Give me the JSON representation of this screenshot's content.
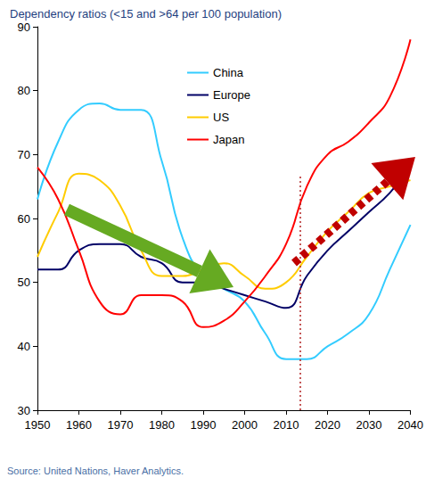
{
  "chart_data": {
    "type": "line",
    "title": "Dependency ratios (<15 and >64 per 100 population)",
    "source": "Source: United Nations, Haver Analytics.",
    "x": [
      1950,
      1955,
      1960,
      1965,
      1970,
      1975,
      1980,
      1985,
      1990,
      1995,
      2000,
      2005,
      2010,
      2015,
      2020,
      2025,
      2030,
      2035,
      2040
    ],
    "series": [
      {
        "name": "China",
        "color": "#33ccff",
        "values": [
          63,
          72,
          77,
          78,
          77,
          77,
          69,
          57,
          51,
          49,
          47,
          42,
          38,
          38,
          40,
          42,
          45,
          52,
          59
        ]
      },
      {
        "name": "Europe",
        "color": "#000066",
        "values": [
          52,
          52,
          55,
          56,
          56,
          54,
          53,
          50,
          50,
          49,
          48,
          47,
          46,
          51,
          55,
          58,
          61,
          64,
          68
        ]
      },
      {
        "name": "US",
        "color": "#ffcc00",
        "values": [
          54,
          61,
          67,
          66,
          62,
          55,
          51,
          51,
          52,
          53,
          51,
          49,
          50,
          54,
          58,
          61,
          64,
          65,
          66
        ]
      },
      {
        "name": "Japan",
        "color": "#ff0000",
        "values": [
          68,
          63,
          55,
          47,
          45,
          48,
          48,
          47,
          43,
          44,
          47,
          51,
          56,
          65,
          70,
          72,
          75,
          79,
          88
        ]
      }
    ],
    "xlim": [
      1950,
      2040
    ],
    "xticks": [
      1950,
      1960,
      1970,
      1980,
      1990,
      2000,
      2010,
      2020,
      2030,
      2040
    ],
    "ylim": [
      30,
      90
    ],
    "yticks": [
      30,
      40,
      50,
      60,
      70,
      80,
      90
    ],
    "grid": false,
    "legend": "top"
  }
}
